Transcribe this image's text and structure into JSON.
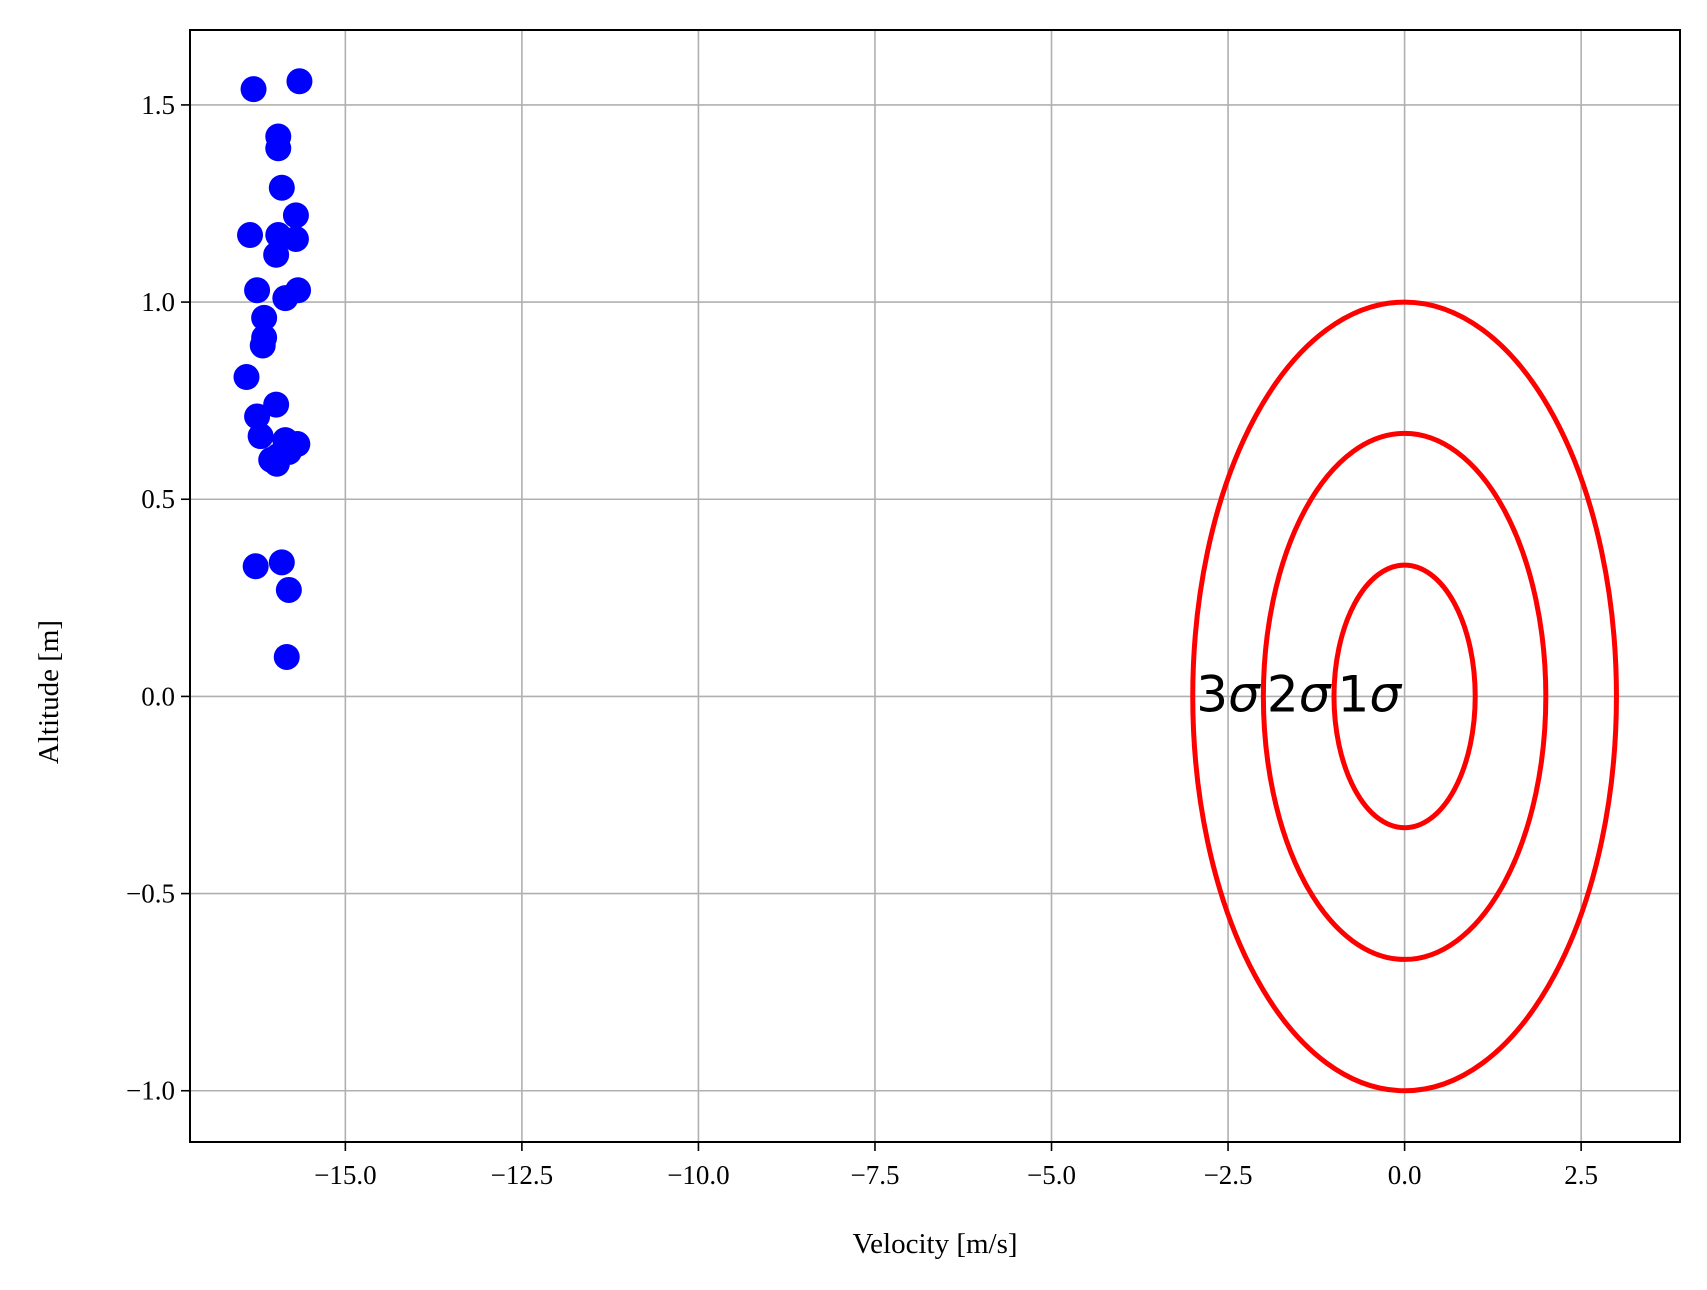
{
  "chart_data": {
    "type": "scatter",
    "title": "",
    "xlabel": "Velocity [m/s]",
    "ylabel": "Altitude [m]",
    "xlim": [
      -17.2,
      3.9
    ],
    "ylim": [
      -1.13,
      1.69
    ],
    "grid": true,
    "x_ticks": [
      -15.0,
      -12.5,
      -10.0,
      -7.5,
      -5.0,
      -2.5,
      0.0,
      2.5
    ],
    "x_tick_labels": [
      "−15.0",
      "−12.5",
      "−10.0",
      "−7.5",
      "−5.0",
      "−2.5",
      "0.0",
      "2.5"
    ],
    "y_ticks": [
      -1.0,
      -0.5,
      0.0,
      0.5,
      1.0,
      1.5
    ],
    "y_tick_labels": [
      "−1.0",
      "−0.5",
      "0.0",
      "0.5",
      "1.0",
      "1.5"
    ],
    "series": [
      {
        "name": "samples",
        "kind": "scatter",
        "color": "#0000ff",
        "points": [
          [
            -16.3,
            1.54
          ],
          [
            -15.65,
            1.56
          ],
          [
            -15.95,
            1.42
          ],
          [
            -15.95,
            1.39
          ],
          [
            -15.9,
            1.29
          ],
          [
            -15.7,
            1.22
          ],
          [
            -16.35,
            1.17
          ],
          [
            -15.95,
            1.17
          ],
          [
            -15.7,
            1.16
          ],
          [
            -15.98,
            1.12
          ],
          [
            -16.25,
            1.03
          ],
          [
            -15.85,
            1.01
          ],
          [
            -15.67,
            1.03
          ],
          [
            -16.15,
            0.96
          ],
          [
            -16.15,
            0.91
          ],
          [
            -16.17,
            0.89
          ],
          [
            -16.4,
            0.81
          ],
          [
            -15.98,
            0.74
          ],
          [
            -16.25,
            0.71
          ],
          [
            -16.2,
            0.66
          ],
          [
            -15.85,
            0.65
          ],
          [
            -15.68,
            0.64
          ],
          [
            -15.8,
            0.62
          ],
          [
            -15.95,
            0.61
          ],
          [
            -16.05,
            0.6
          ],
          [
            -15.97,
            0.59
          ],
          [
            -16.27,
            0.33
          ],
          [
            -15.9,
            0.34
          ],
          [
            -15.8,
            0.27
          ],
          [
            -15.83,
            0.1
          ]
        ]
      },
      {
        "name": "sigma-ellipses",
        "kind": "ellipse",
        "color": "#ff0000",
        "center": [
          0.0,
          0.0
        ],
        "ellipses": [
          {
            "sigma": 1,
            "semi_x": 1.0,
            "semi_y": 0.333
          },
          {
            "sigma": 2,
            "semi_x": 2.0,
            "semi_y": 0.667
          },
          {
            "sigma": 3,
            "semi_x": 3.0,
            "semi_y": 1.0
          }
        ]
      }
    ],
    "annotations": [
      {
        "text": "3",
        "symbol": "σ",
        "x": -2.95,
        "y": 0.0
      },
      {
        "text": "2",
        "symbol": "σ",
        "x": -1.95,
        "y": 0.0
      },
      {
        "text": "1",
        "symbol": "σ",
        "x": -0.95,
        "y": 0.0
      }
    ]
  }
}
